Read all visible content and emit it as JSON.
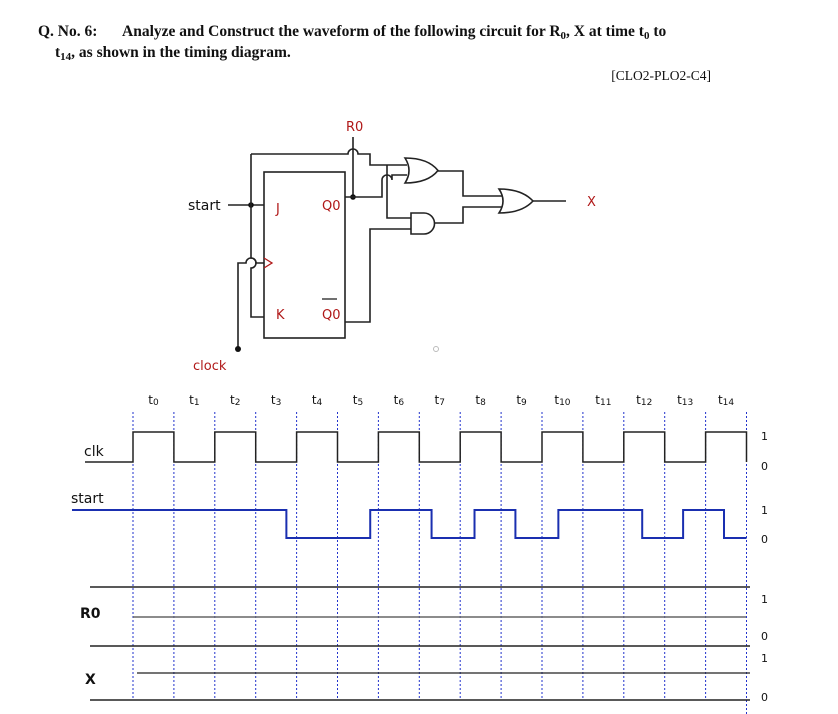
{
  "question": {
    "number": "Q. No. 6:",
    "line1": "Analyze and Construct the waveform of the following circuit for R",
    "r_sub": "0",
    "line1_mid": ",  X at time t",
    "t_sub": "0",
    "line1_end": " to",
    "line2_t": "t",
    "line2_sub": "14",
    "line2": ", as shown in the timing diagram.",
    "reference": "[CLO2-PLO2-C4]"
  },
  "circuit": {
    "start_label": "start",
    "clock_label": "clock",
    "j_label": "J",
    "k_label": "K",
    "q_label": "Q0",
    "qbar_label": "Q0",
    "r0_label": "R0",
    "x_label": "X",
    "label_color": "#b01818"
  },
  "timing": {
    "time_labels": [
      "t0",
      "t1",
      "t2",
      "t3",
      "t4",
      "t5",
      "t6",
      "t7",
      "t8",
      "t9",
      "t10",
      "t11",
      "t12",
      "t13",
      "t14"
    ],
    "rows": [
      {
        "name": "clk",
        "high": "1",
        "low": "0"
      },
      {
        "name": "start",
        "high": "1",
        "low": "0"
      },
      {
        "name": "R0",
        "high": "1",
        "low": "0"
      },
      {
        "name": "X",
        "high": "1",
        "low": "0"
      }
    ],
    "clk_pattern": "high during each even interval (t0, t2, t4 ... t14), low during odd intervals",
    "start_initial": 1,
    "start_edges": [
      3.75,
      5.8,
      7.3,
      8.35,
      9.35,
      10.4,
      12.45,
      13.45,
      14.45
    ],
    "start_color": "#1a2fb0",
    "grid_color": "#2233cc"
  }
}
